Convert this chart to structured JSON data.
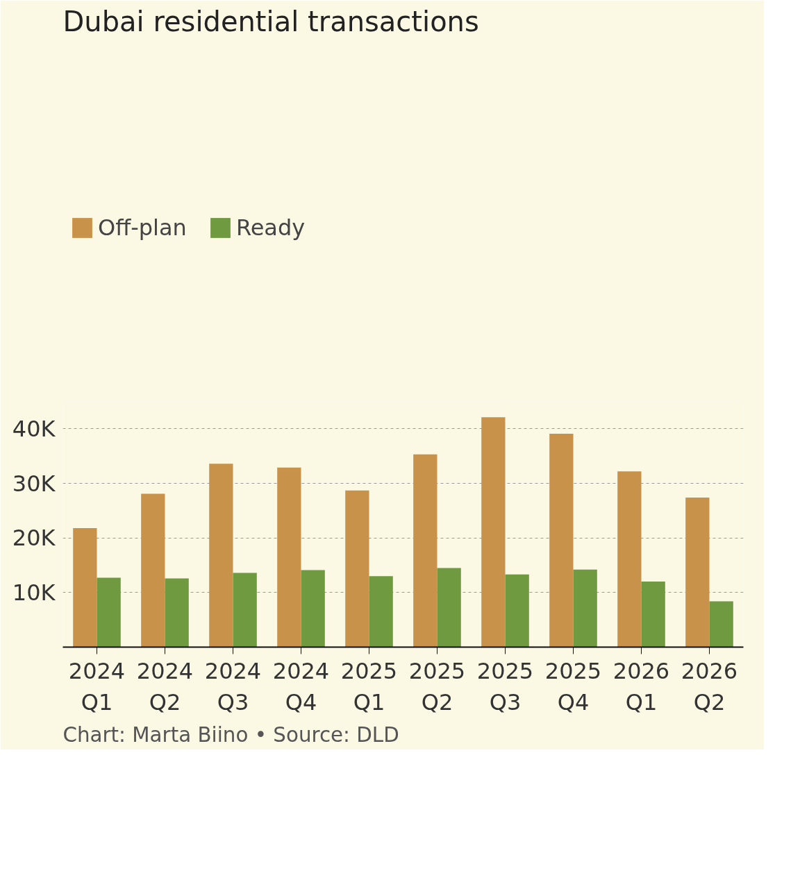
{
  "chart_data": {
    "type": "bar",
    "title": "Dubai residential transactions",
    "categories": [
      "2024\nQ1",
      "2024\nQ2",
      "2024\nQ3",
      "2024\nQ4",
      "2025\nQ1",
      "2025\nQ2",
      "2025\nQ3",
      "2025\nQ4",
      "2026\nQ1",
      "2026\nQ2"
    ],
    "series": [
      {
        "name": "Off-plan",
        "color": "#c9924a",
        "values": [
          21800,
          28100,
          33600,
          32900,
          28700,
          35300,
          42100,
          39100,
          32200,
          27400
        ]
      },
      {
        "name": "Ready",
        "color": "#6f9a40",
        "values": [
          12700,
          12600,
          13600,
          14100,
          13000,
          14500,
          13300,
          14200,
          12000,
          8400
        ]
      }
    ],
    "ylim": [
      0,
      45000
    ],
    "yticks": [
      {
        "value": 10000,
        "label": "10K"
      },
      {
        "value": 20000,
        "label": "20K"
      },
      {
        "value": 30000,
        "label": "30K"
      },
      {
        "value": 40000,
        "label": "40K"
      }
    ],
    "grid": "y",
    "legend": "top left",
    "annotations": [
      "Chart: Marta Biino • Source: DLD"
    ]
  }
}
